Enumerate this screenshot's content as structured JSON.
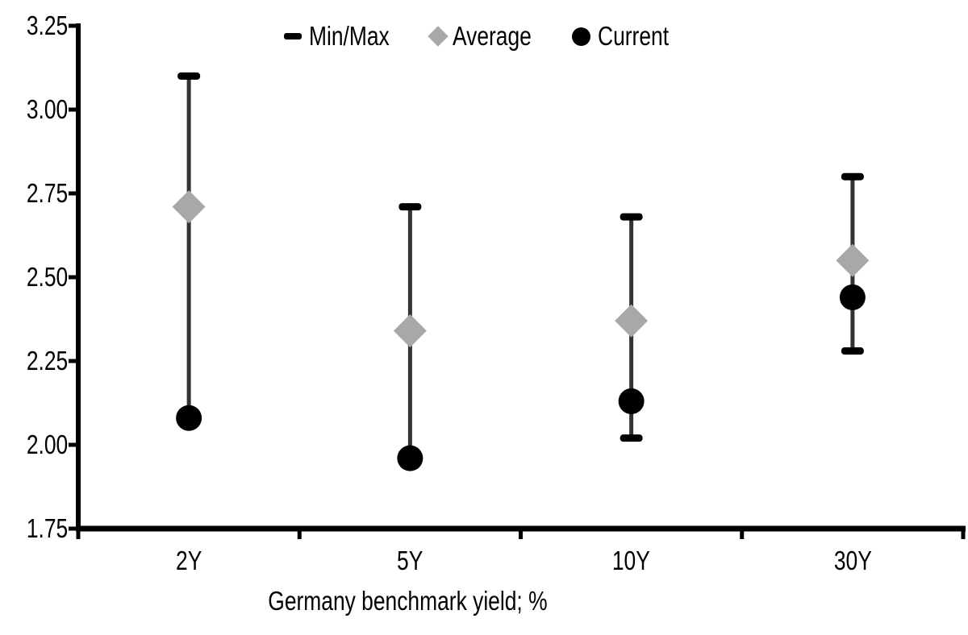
{
  "chart_data": {
    "type": "scatter",
    "subtype": "min-max-range-with-markers",
    "title": "",
    "xlabel": "Germany benchmark yield; %",
    "ylabel": "",
    "categories": [
      "2Y",
      "5Y",
      "10Y",
      "30Y"
    ],
    "series": [
      {
        "name": "Min/Max",
        "marker": "dash",
        "color": "#000000",
        "min": [
          2.08,
          1.96,
          2.02,
          2.28
        ],
        "max": [
          3.1,
          2.71,
          2.68,
          2.8
        ]
      },
      {
        "name": "Average",
        "marker": "diamond",
        "color": "#a8a8a8",
        "values": [
          2.71,
          2.34,
          2.37,
          2.55
        ]
      },
      {
        "name": "Current",
        "marker": "circle",
        "color": "#000000",
        "values": [
          2.08,
          1.96,
          2.13,
          2.44
        ]
      }
    ],
    "ylim": [
      1.75,
      3.25
    ],
    "y_tick_step": 0.25,
    "y_ticks": [
      "3.25",
      "3.00",
      "2.75",
      "2.50",
      "2.25",
      "2.00",
      "1.75"
    ],
    "grid": false,
    "legend_position": "top-center",
    "axis_color": "#000000",
    "whisker_color": "#333333",
    "text_color": "#000000",
    "background": "#ffffff"
  }
}
